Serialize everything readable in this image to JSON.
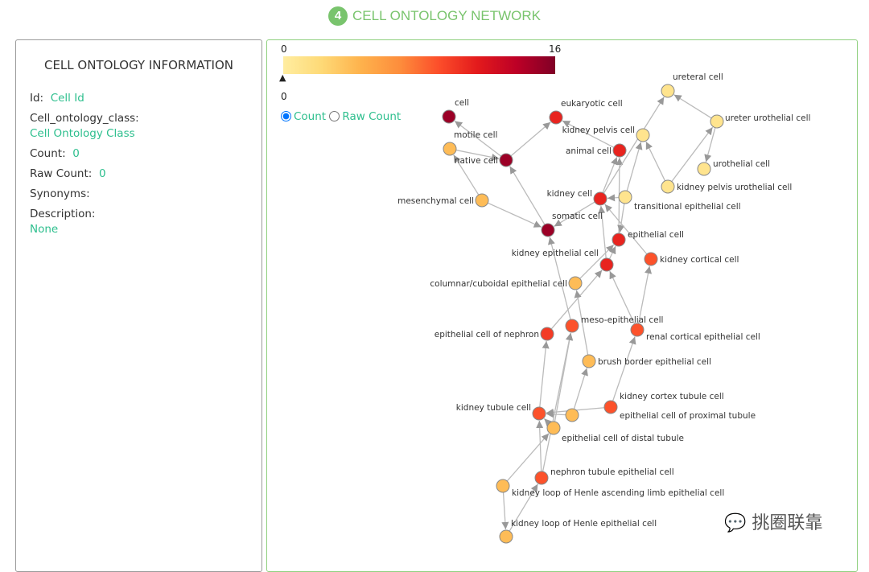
{
  "header": {
    "badge": "4",
    "title": "CELL ONTOLOGY NETWORK"
  },
  "info": {
    "title": "CELL ONTOLOGY INFORMATION",
    "id_label": "Id:",
    "id_value": "Cell Id",
    "class_label": "Cell_ontology_class:",
    "class_value": "Cell Ontology Class",
    "count_label": "Count:",
    "count_value": "0",
    "raw_label": "Raw Count:",
    "raw_value": "0",
    "synonyms_label": "Synonyms:",
    "desc_label": "Description:",
    "desc_value": "None"
  },
  "colorbar": {
    "min": "0",
    "max": "16",
    "marker": "0",
    "colors": [
      "#ffeda0",
      "#fed976",
      "#feb24c",
      "#fd8d3c",
      "#fc4e2a",
      "#e31a1c",
      "#bd0026",
      "#800026"
    ]
  },
  "mode": {
    "count": "Count",
    "raw": "Raw Count",
    "selected": "count"
  },
  "watermark": "挑圈联靠",
  "network": {
    "nodes": [
      {
        "label": "cell",
        "count": 15
      },
      {
        "label": "eukaryotic cell",
        "count": 11
      },
      {
        "label": "motile cell",
        "count": 4
      },
      {
        "label": "native cell",
        "count": 15
      },
      {
        "label": "mesenchymal cell",
        "count": 4
      },
      {
        "label": "somatic cell",
        "count": 15
      },
      {
        "label": "animal cell",
        "count": 11
      },
      {
        "label": "kidney pelvis cell",
        "count": 1
      },
      {
        "label": "ureteral cell",
        "count": 1
      },
      {
        "label": "ureter urothelial cell",
        "count": 1
      },
      {
        "label": "urothelial cell",
        "count": 1
      },
      {
        "label": "kidney pelvis urothelial cell",
        "count": 1
      },
      {
        "label": "kidney cell",
        "count": 11
      },
      {
        "label": "transitional epithelial cell",
        "count": 1
      },
      {
        "label": "epithelial cell",
        "count": 11
      },
      {
        "label": "kidney epithelial cell",
        "count": 11
      },
      {
        "label": "kidney cortical cell",
        "count": 9
      },
      {
        "label": "columnar/cuboidal epithelial cell",
        "count": 4
      },
      {
        "label": "meso-epithelial cell",
        "count": 9
      },
      {
        "label": "epithelial cell of nephron",
        "count": 10
      },
      {
        "label": "renal cortical epithelial cell",
        "count": 9
      },
      {
        "label": "brush border epithelial cell",
        "count": 4
      },
      {
        "label": "kidney cortex tubule cell",
        "count": 9
      },
      {
        "label": "epithelial cell of proximal tubule",
        "count": 4
      },
      {
        "label": "kidney tubule cell",
        "count": 9
      },
      {
        "label": "epithelial cell of distal tubule",
        "count": 4
      },
      {
        "label": "nephron tubule epithelial cell",
        "count": 9
      },
      {
        "label": "kidney loop of Henle ascending limb epithelial cell",
        "count": 4
      },
      {
        "label": "kidney loop of Henle epithelial cell",
        "count": 4
      }
    ],
    "edges": [
      [
        3,
        0
      ],
      [
        3,
        1
      ],
      [
        2,
        3
      ],
      [
        4,
        2
      ],
      [
        4,
        5
      ],
      [
        5,
        3
      ],
      [
        6,
        1
      ],
      [
        12,
        6
      ],
      [
        14,
        6
      ],
      [
        12,
        5
      ],
      [
        13,
        12
      ],
      [
        13,
        7
      ],
      [
        9,
        8
      ],
      [
        9,
        10
      ],
      [
        12,
        8
      ],
      [
        11,
        9
      ],
      [
        11,
        7
      ],
      [
        13,
        14
      ],
      [
        15,
        14
      ],
      [
        15,
        12
      ],
      [
        16,
        12
      ],
      [
        17,
        14
      ],
      [
        18,
        5
      ],
      [
        19,
        15
      ],
      [
        20,
        16
      ],
      [
        20,
        15
      ],
      [
        21,
        17
      ],
      [
        24,
        19
      ],
      [
        23,
        21
      ],
      [
        23,
        24
      ],
      [
        22,
        20
      ],
      [
        22,
        24
      ],
      [
        25,
        24
      ],
      [
        25,
        18
      ],
      [
        26,
        18
      ],
      [
        26,
        24
      ],
      [
        27,
        25
      ],
      [
        27,
        28
      ],
      [
        28,
        26
      ]
    ]
  }
}
